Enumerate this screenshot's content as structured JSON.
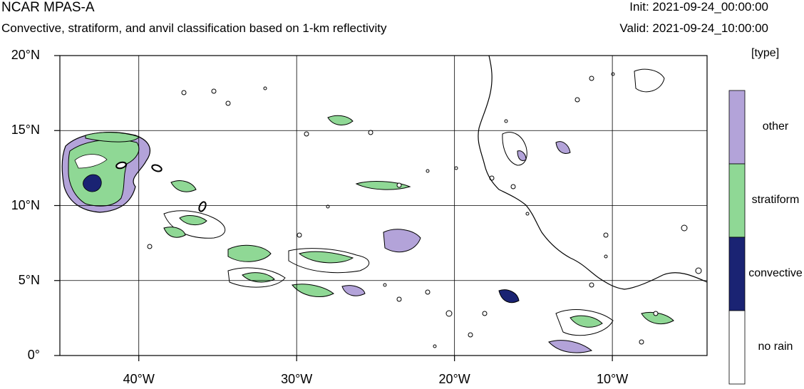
{
  "header": {
    "title": "NCAR MPAS-A",
    "subtitle": "Convective, stratiform, and anvil classification based on 1-km reflectivity",
    "init": "Init: 2021-09-24_00:00:00",
    "valid": "Valid: 2021-09-24_10:00:00"
  },
  "map": {
    "lat_ticks": [
      {
        "value": 20,
        "label": "20°N"
      },
      {
        "value": 15,
        "label": "15°N"
      },
      {
        "value": 10,
        "label": "10°N"
      },
      {
        "value": 5,
        "label": "5°N"
      },
      {
        "value": 0,
        "label": "0°"
      }
    ],
    "lon_ticks": [
      {
        "value": -40,
        "label": "40°W"
      },
      {
        "value": -30,
        "label": "30°W"
      },
      {
        "value": -20,
        "label": "20°W"
      },
      {
        "value": -10,
        "label": "10°W"
      }
    ],
    "lon_range": [
      -45,
      -4
    ],
    "lat_range": [
      0,
      20
    ]
  },
  "legend": {
    "title": "[type]",
    "items": [
      {
        "label": "other",
        "color": "#b3a3d9"
      },
      {
        "label": "stratiform",
        "color": "#8fd895"
      },
      {
        "label": "convective",
        "color": "#1a2373"
      },
      {
        "label": "no rain",
        "color": "#ffffff"
      }
    ]
  }
}
